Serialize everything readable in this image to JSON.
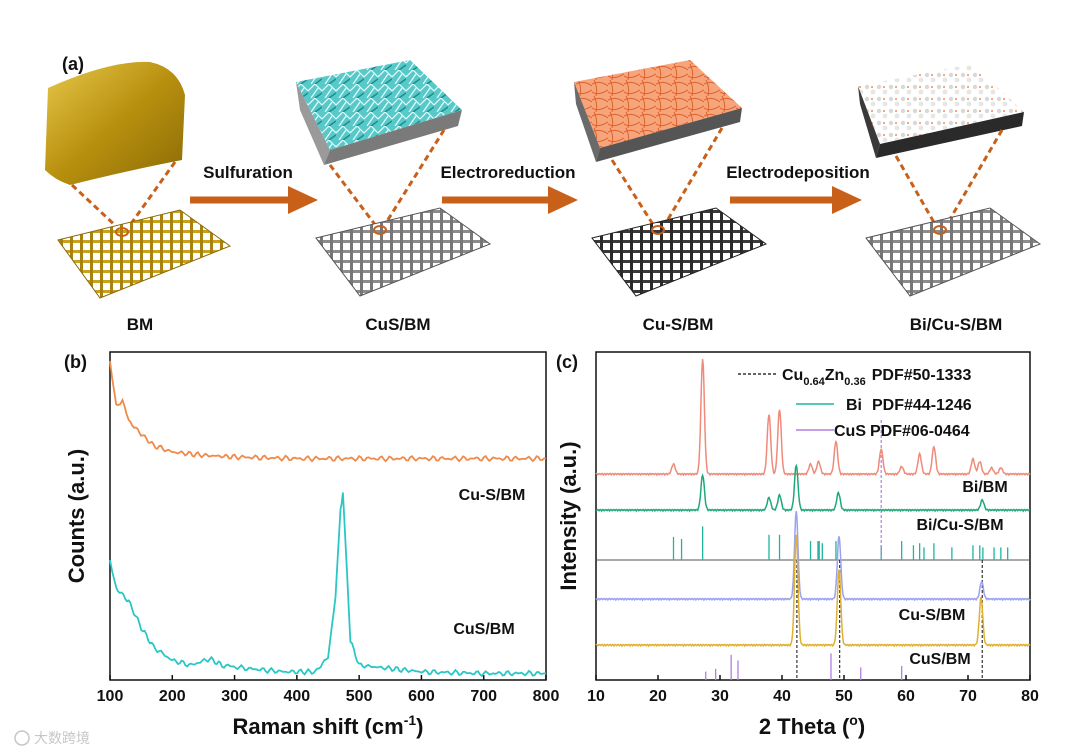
{
  "panel_a": {
    "label": "(a)",
    "stages": [
      "BM",
      "CuS/BM",
      "Cu-S/BM",
      "Bi/Cu-S/BM"
    ],
    "steps": [
      "Sulfuration",
      "Electroreduction",
      "Electrodeposition"
    ],
    "colors": {
      "bm": "#c8a21a",
      "cus": "#2bb7b7",
      "cus_s": "#ef8452",
      "bi": "#f2f2f2",
      "arrow": "#c8601a",
      "mesh_dark": "#333333",
      "mesh_grey": "#8a8a8a"
    }
  },
  "watermark": "大数跨境",
  "chart_data": [
    {
      "type": "line",
      "panel": "(b)",
      "title": "",
      "xlabel_main": "Raman shift (cm",
      "xlabel_sup": "-1",
      "xlabel_end": ")",
      "ylabel": "Counts (a.u.)",
      "xlim": [
        100,
        800
      ],
      "xticks": [
        "100",
        "200",
        "300",
        "400",
        "500",
        "600",
        "700",
        "800"
      ],
      "series": [
        {
          "name": "Cu-S/BM",
          "color": "#ef8a4a",
          "x": [
            100,
            110,
            120,
            130,
            150,
            170,
            200,
            250,
            300,
            400,
            500,
            600,
            700,
            800
          ],
          "y": [
            0.97,
            0.84,
            0.85,
            0.79,
            0.75,
            0.715,
            0.695,
            0.685,
            0.68,
            0.675,
            0.675,
            0.675,
            0.675,
            0.675
          ]
        },
        {
          "name": "CuS/BM",
          "color": "#2bc6c6",
          "x": [
            100,
            110,
            130,
            150,
            170,
            200,
            230,
            260,
            280,
            320,
            380,
            430,
            450,
            462,
            470,
            474,
            478,
            486,
            500,
            550,
            600,
            700,
            800
          ],
          "y": [
            0.36,
            0.28,
            0.24,
            0.16,
            0.1,
            0.06,
            0.045,
            0.065,
            0.045,
            0.035,
            0.025,
            0.025,
            0.07,
            0.25,
            0.52,
            0.57,
            0.42,
            0.12,
            0.045,
            0.035,
            0.025,
            0.02,
            0.02
          ]
        }
      ]
    },
    {
      "type": "line",
      "panel": "(c)",
      "title": "",
      "xlabel": "2 Theta (",
      "xlabel_sup": "o",
      "xlabel_end": ")",
      "ylabel": "Intensity (a.u.)",
      "xlim": [
        10,
        80
      ],
      "xticks": [
        "10",
        "20",
        "30",
        "40",
        "50",
        "60",
        "70",
        "80"
      ],
      "legend": [
        {
          "style": "dotted",
          "color": "#333333",
          "formula": "Cu",
          "sub1": "0.64",
          "mid": "Zn",
          "sub2": "0.36",
          "text": "PDF#50-1333"
        },
        {
          "style": "solid",
          "color": "#1fb5a0",
          "name": "Bi",
          "text": "PDF#44-1246"
        },
        {
          "style": "solid",
          "color": "#b07fe0",
          "name": "CuS",
          "text": "PDF#06-0464"
        }
      ],
      "series": [
        {
          "name": "Bi/BM",
          "color": "#f08a7a",
          "peaks": [
            [
              22.5,
              8
            ],
            [
              27.2,
              92
            ],
            [
              37.9,
              48
            ],
            [
              39.6,
              52
            ],
            [
              44.6,
              8
            ],
            [
              45.9,
              10
            ],
            [
              48.7,
              26
            ],
            [
              56.0,
              20
            ],
            [
              59.3,
              6
            ],
            [
              62.2,
              16
            ],
            [
              64.5,
              22
            ],
            [
              70.8,
              12
            ],
            [
              71.9,
              10
            ],
            [
              73.8,
              5
            ],
            [
              75.3,
              5
            ]
          ]
        },
        {
          "name": "Bi/Cu-S/BM",
          "color": "#1fa878",
          "peaks": [
            [
              27.2,
              28
            ],
            [
              37.9,
              10
            ],
            [
              39.6,
              12
            ],
            [
              42.3,
              36
            ],
            [
              49.1,
              14
            ],
            [
              72.3,
              8
            ]
          ]
        },
        {
          "name": "Cu-S/BM",
          "color": "#9aa2f0",
          "peaks": [
            [
              42.3,
              70
            ],
            [
              49.2,
              50
            ],
            [
              72.2,
              14
            ]
          ]
        },
        {
          "name": "CuS/BM",
          "color": "#e0b030",
          "peaks": [
            [
              42.3,
              88
            ],
            [
              49.2,
              60
            ],
            [
              72.1,
              38
            ]
          ]
        }
      ],
      "reference_lines": {
        "Bi": [
          22.5,
          23.8,
          27.2,
          37.9,
          39.6,
          44.6,
          45.8,
          46.0,
          46.5,
          48.7,
          56.0,
          59.3,
          61.2,
          62.2,
          62.9,
          64.5,
          67.4,
          70.8,
          71.9,
          72.4,
          74.2,
          75.3,
          76.4
        ],
        "Bi_heights": [
          0.55,
          0.5,
          0.8,
          0.6,
          0.6,
          0.45,
          0.45,
          0.45,
          0.4,
          0.45,
          0.35,
          0.45,
          0.35,
          0.4,
          0.3,
          0.4,
          0.3,
          0.35,
          0.35,
          0.3,
          0.3,
          0.3,
          0.3
        ],
        "CuS": [
          27.7,
          29.3,
          31.8,
          32.9,
          47.9,
          52.7,
          59.3
        ],
        "CuS_heights": [
          0.3,
          0.4,
          0.9,
          0.7,
          0.95,
          0.45,
          0.5
        ],
        "CuZn": [
          42.4,
          49.3,
          72.3
        ]
      }
    }
  ]
}
